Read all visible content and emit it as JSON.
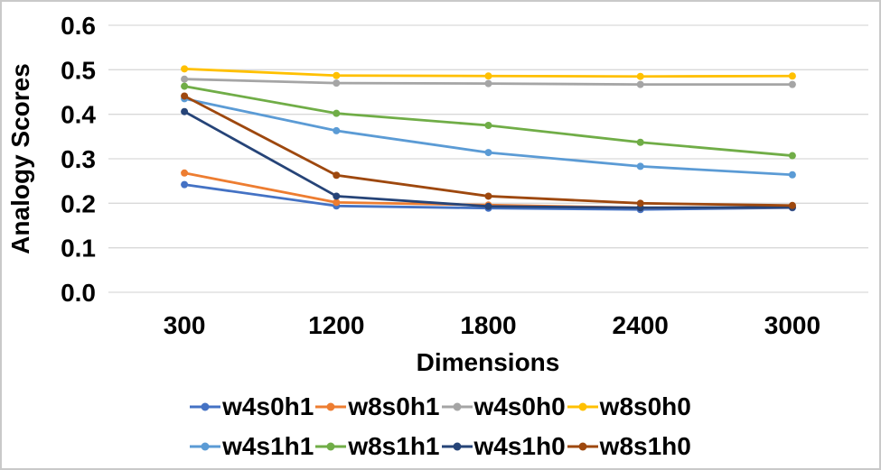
{
  "frame": {
    "border_color": "#c9c9c9",
    "background": "#ffffff"
  },
  "chart_data": {
    "type": "line",
    "title": "",
    "xlabel": "Dimensions",
    "ylabel": "Analogy Scores",
    "categories": [
      "300",
      "1200",
      "1800",
      "2400",
      "3000"
    ],
    "ylim": [
      0.0,
      0.6
    ],
    "y_ticks": [
      0.0,
      0.1,
      0.2,
      0.3,
      0.4,
      0.5,
      0.6
    ],
    "grid": true,
    "gridline_color": "#d9d9d9",
    "marker": "circle",
    "legend_position": "bottom",
    "legend_rows": [
      [
        "w4s0h1",
        "w8s0h1",
        "w4s0h0",
        "w8s0h0"
      ],
      [
        "w4s1h1",
        "w8s1h1",
        "w4s1h0",
        "w8s1h0"
      ]
    ],
    "series": [
      {
        "name": "w4s0h1",
        "color": "#4472C4",
        "values": [
          0.242,
          0.194,
          0.189,
          0.186,
          0.19
        ]
      },
      {
        "name": "w8s0h1",
        "color": "#ED7D31",
        "values": [
          0.268,
          0.202,
          0.196,
          0.19,
          0.191
        ]
      },
      {
        "name": "w4s0h0",
        "color": "#A5A5A5",
        "values": [
          0.479,
          0.47,
          0.469,
          0.467,
          0.467
        ]
      },
      {
        "name": "w8s0h0",
        "color": "#FFC000",
        "values": [
          0.502,
          0.487,
          0.486,
          0.485,
          0.486
        ]
      },
      {
        "name": "w4s1h1",
        "color": "#5B9BD5",
        "values": [
          0.435,
          0.363,
          0.314,
          0.283,
          0.264
        ]
      },
      {
        "name": "w8s1h1",
        "color": "#70AD47",
        "values": [
          0.463,
          0.402,
          0.375,
          0.337,
          0.307
        ]
      },
      {
        "name": "w4s1h0",
        "color": "#264478",
        "values": [
          0.406,
          0.216,
          0.193,
          0.19,
          0.191
        ]
      },
      {
        "name": "w8s1h0",
        "color": "#9E480E",
        "values": [
          0.441,
          0.263,
          0.216,
          0.2,
          0.195
        ]
      }
    ]
  }
}
